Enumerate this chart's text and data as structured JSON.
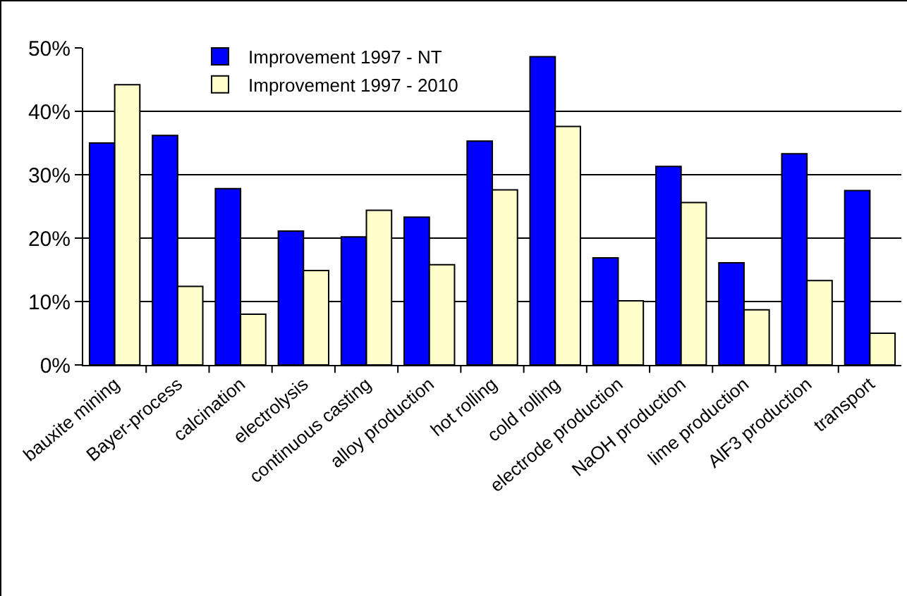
{
  "chart_data": {
    "type": "bar",
    "categories": [
      "bauxite mining",
      "Bayer-process",
      "calcination",
      "electrolysis",
      "continuous casting",
      "alloy production",
      "hot rolling",
      "cold rolling",
      "electrode production",
      "NaOH production",
      "lime production",
      "AlF3 production",
      "transport"
    ],
    "series": [
      {
        "name": "Improvement 1997 - NT",
        "color": "#0000ff",
        "values": [
          35,
          36.2,
          27.8,
          21.1,
          20.2,
          23.3,
          35.3,
          48.6,
          16.9,
          31.3,
          16.1,
          33.3,
          27.5
        ]
      },
      {
        "name": "Improvement 1997 - 2010",
        "color": "#ffffcc",
        "values": [
          44.2,
          12.4,
          8,
          14.9,
          24.4,
          15.8,
          27.6,
          37.6,
          10.1,
          25.6,
          8.7,
          13.3,
          5
        ]
      }
    ],
    "ylim": [
      0,
      50
    ],
    "yticks": [
      {
        "value": 0,
        "label": "0%"
      },
      {
        "value": 10,
        "label": "10%"
      },
      {
        "value": 20,
        "label": "20%"
      },
      {
        "value": 30,
        "label": "30%"
      },
      {
        "value": 40,
        "label": "40%"
      },
      {
        "value": 50,
        "label": "50%"
      }
    ],
    "grid": "y",
    "legend": "top"
  }
}
